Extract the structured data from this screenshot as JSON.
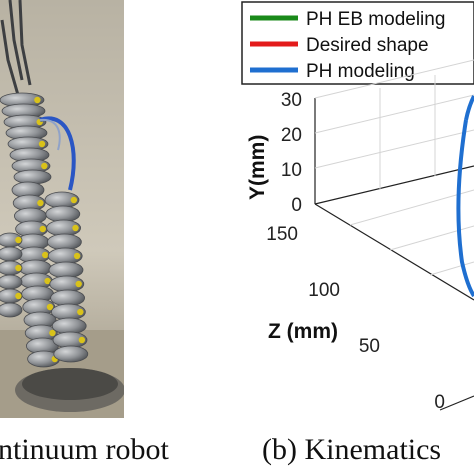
{
  "figure": {
    "panel_a_caption": "ntinuum robot",
    "panel_b_caption": "(b) Kinematics"
  },
  "chart_data": {
    "type": "line",
    "projection": "3d",
    "legend": {
      "placement": "top-right",
      "entries": [
        {
          "label": "PH EB modeling",
          "color": "#1a8a1a"
        },
        {
          "label": "Desired shape",
          "color": "#e31b1b"
        },
        {
          "label": "PH modeling",
          "color": "#1f6fd0"
        }
      ]
    },
    "axes": {
      "y": {
        "label": "Y(mm)",
        "ticks": [
          "30",
          "20",
          "10",
          "0"
        ],
        "range": [
          0,
          30
        ]
      },
      "z": {
        "label": "Z (mm)",
        "ticks": [
          "150",
          "100",
          "50",
          "0"
        ],
        "range": [
          0,
          150
        ]
      }
    },
    "grid": true
  },
  "colors": {
    "robot_body": "#8f9296",
    "robot_joint": "#d9c21a",
    "background_photo": "#c9c3b5",
    "cable": "#2a56c4"
  }
}
